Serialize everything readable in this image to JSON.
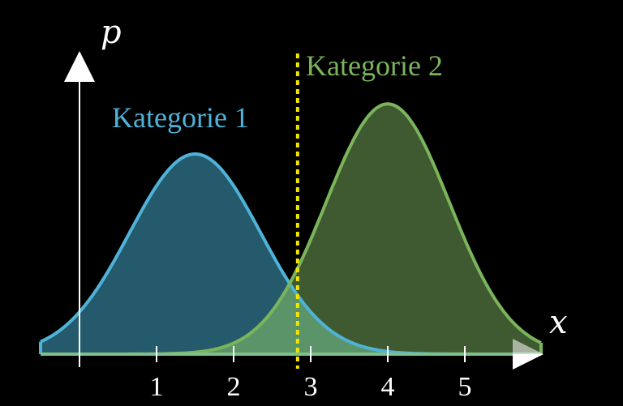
{
  "chart_data": {
    "type": "area",
    "xlabel": "x",
    "ylabel": "p",
    "x_ticks": [
      "1",
      "2",
      "3",
      "4",
      "5"
    ],
    "xlim": [
      -0.5,
      6.0
    ],
    "grid": false,
    "series": [
      {
        "name": "Kategorie 1",
        "color": "#4fb3d9",
        "fill": "#245a6c",
        "distribution": "normal",
        "mean": 1.5,
        "sd": 0.85,
        "peak_height": 1.0,
        "x": [
          -0.5,
          0,
          0.5,
          1.0,
          1.5,
          2.0,
          2.5,
          3.0,
          3.5,
          4.0,
          4.5,
          5.0,
          5.5,
          6.0
        ],
        "y": [
          0.06,
          0.21,
          0.5,
          0.84,
          1.0,
          0.84,
          0.5,
          0.21,
          0.06,
          0.013,
          0.002,
          0.0,
          0.0,
          0.0
        ]
      },
      {
        "name": "Kategorie 2",
        "color": "#7ab55c",
        "fill": "#3f5a30",
        "distribution": "normal",
        "mean": 4.0,
        "sd": 0.8,
        "peak_height": 1.25,
        "x": [
          -0.5,
          0,
          0.5,
          1.0,
          1.5,
          2.0,
          2.5,
          3.0,
          3.5,
          4.0,
          4.5,
          5.0,
          5.5,
          6.0
        ],
        "y": [
          0.0,
          0.0,
          0.0,
          0.001,
          0.009,
          0.055,
          0.21,
          0.57,
          1.03,
          1.25,
          1.03,
          0.57,
          0.21,
          0.055
        ]
      }
    ],
    "overlap_fill": "#5a9468",
    "threshold": {
      "x": 2.83,
      "color": "#f2e600",
      "style": "dotted"
    }
  }
}
